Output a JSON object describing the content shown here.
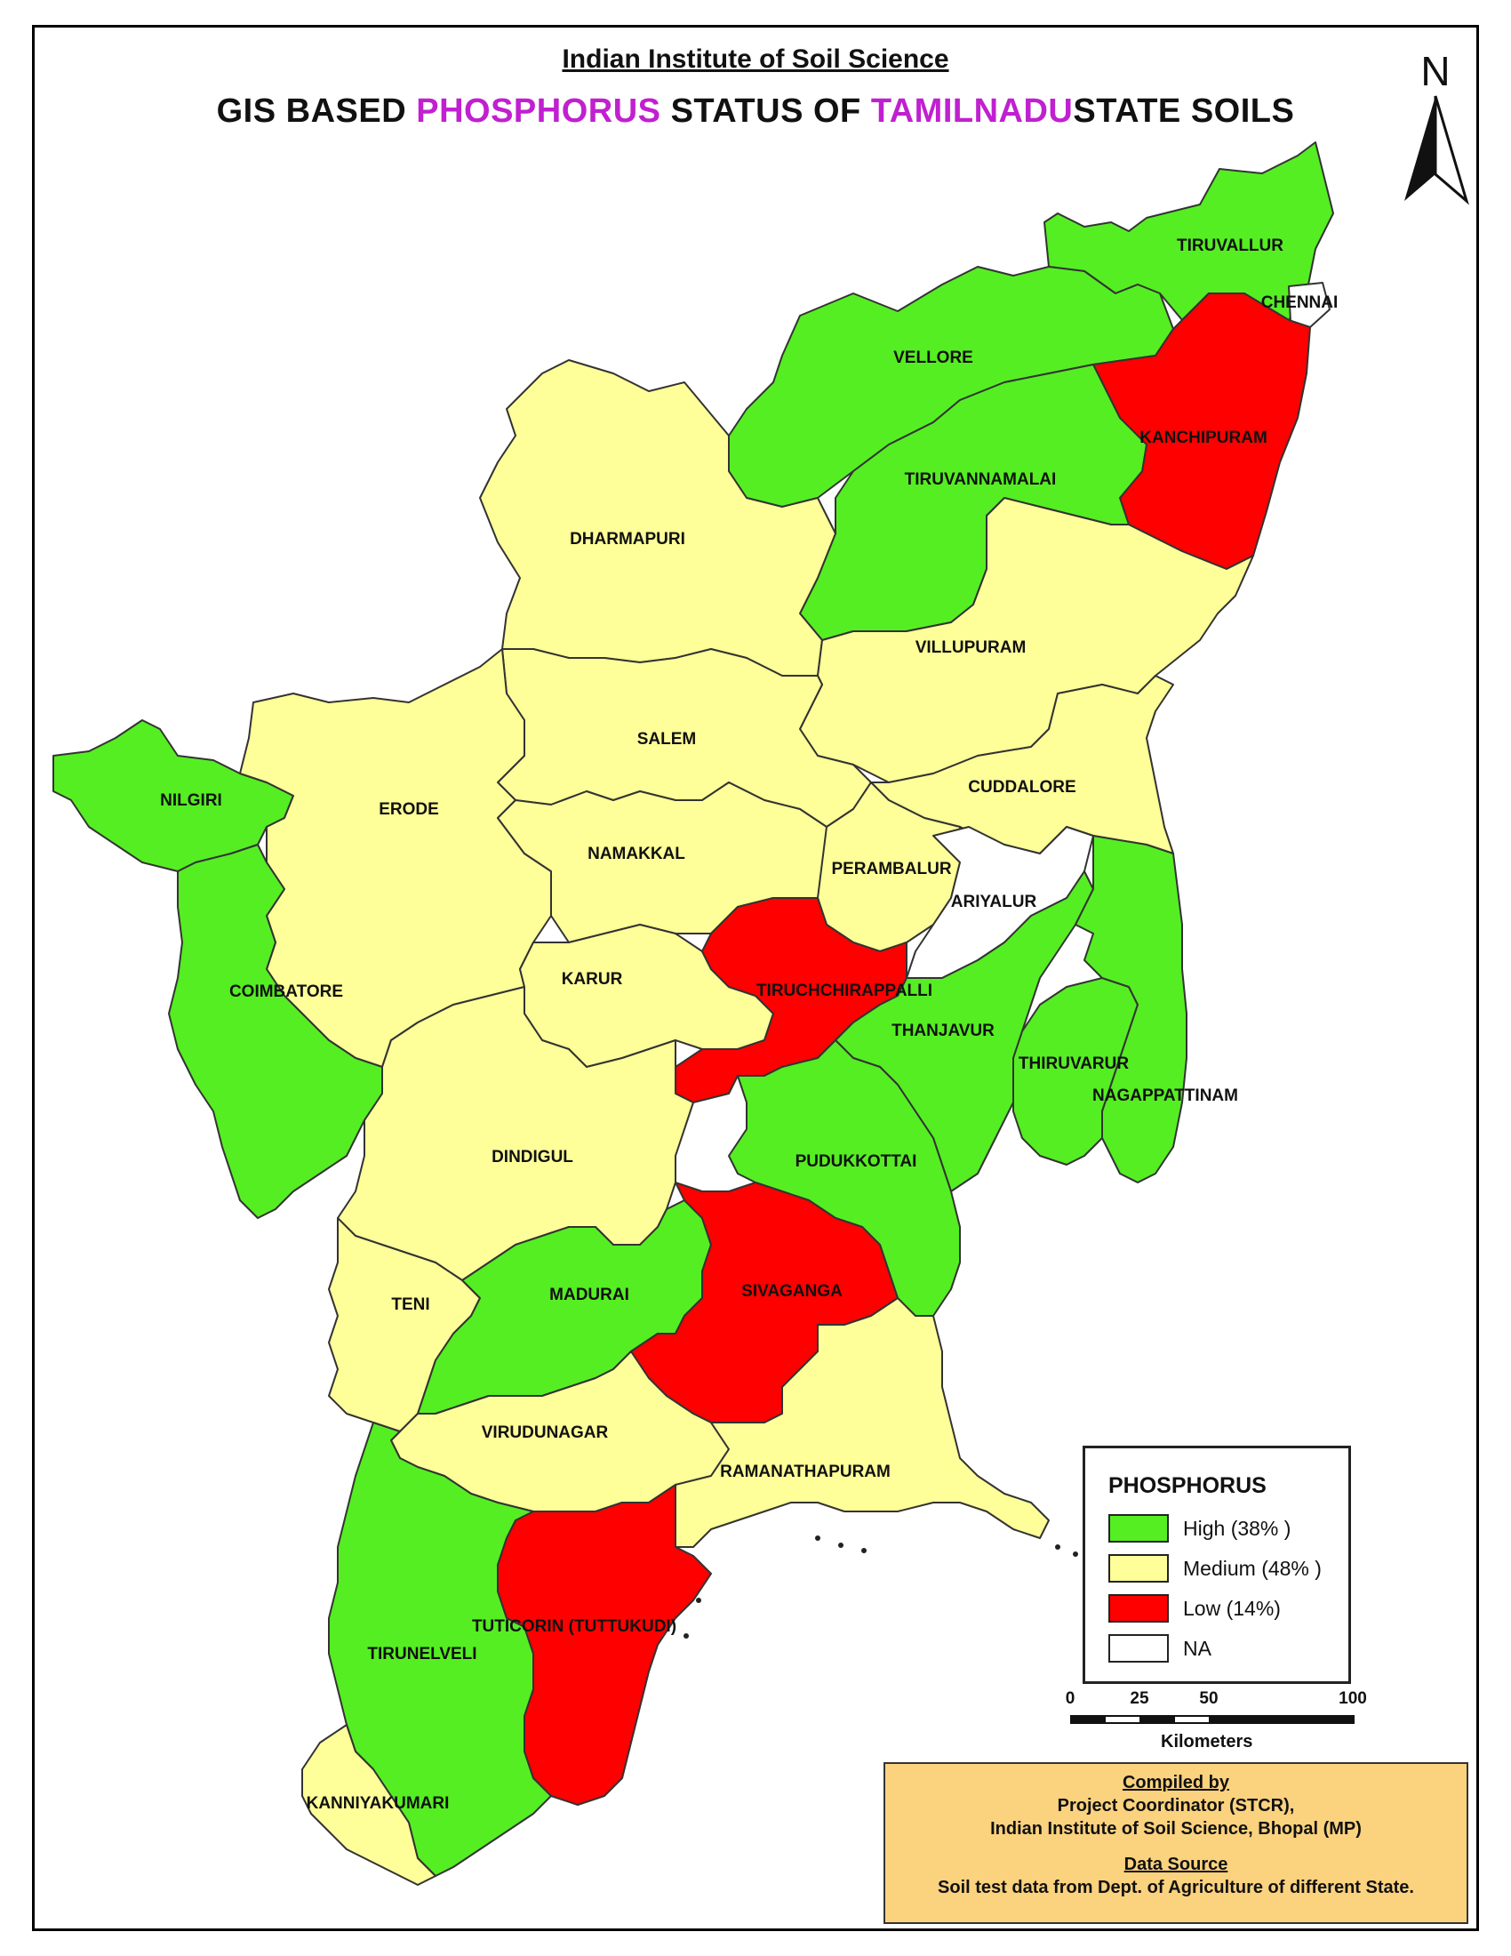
{
  "header": {
    "org": "Indian Institute of Soil Science",
    "title_parts": [
      "GIS BASED ",
      "PHOSPHORUS",
      " STATUS OF ",
      "TAMILNADU",
      "STATE SOILS"
    ]
  },
  "north_label": "N",
  "colors": {
    "high": "#55ee22",
    "medium": "#ffff99",
    "low": "#ff0000",
    "na": "#ffffff",
    "accent": "#c020d0",
    "credits_bg": "#fbd27e"
  },
  "districts": [
    {
      "id": "tiruvallur",
      "name": "TIRUVALLUR",
      "status": "high"
    },
    {
      "id": "chennai",
      "name": "CHENNAI",
      "status": "na"
    },
    {
      "id": "vellore",
      "name": "VELLORE",
      "status": "high"
    },
    {
      "id": "kanchipuram",
      "name": "KANCHIPURAM",
      "status": "low"
    },
    {
      "id": "tiruvannamalai",
      "name": "TIRUVANNAMALAI",
      "status": "high"
    },
    {
      "id": "dharmapuri",
      "name": "DHARMAPURI",
      "status": "medium"
    },
    {
      "id": "villupuram",
      "name": "VILLUPURAM",
      "status": "medium"
    },
    {
      "id": "salem",
      "name": "SALEM",
      "status": "medium"
    },
    {
      "id": "cuddalore",
      "name": "CUDDALORE",
      "status": "medium"
    },
    {
      "id": "nilgiri",
      "name": "NILGIRI",
      "status": "high"
    },
    {
      "id": "erode",
      "name": "ERODE",
      "status": "medium"
    },
    {
      "id": "namakkal",
      "name": "NAMAKKAL",
      "status": "medium"
    },
    {
      "id": "perambalur",
      "name": "PERAMBALUR",
      "status": "medium"
    },
    {
      "id": "ariyalur",
      "name": "ARIYALUR",
      "status": "na"
    },
    {
      "id": "karur",
      "name": "KARUR",
      "status": "medium"
    },
    {
      "id": "tiruchchirappalli",
      "name": "TIRUCHCHIRAPPALLI",
      "status": "low"
    },
    {
      "id": "coimbatore",
      "name": "COIMBATORE",
      "status": "high"
    },
    {
      "id": "thanjavur",
      "name": "THANJAVUR",
      "status": "high"
    },
    {
      "id": "thiruvarur",
      "name": "THIRUVARUR",
      "status": "high"
    },
    {
      "id": "nagappattinam",
      "name": "NAGAPPATTINAM",
      "status": "high"
    },
    {
      "id": "dindigul",
      "name": "DINDIGUL",
      "status": "medium"
    },
    {
      "id": "pudukkottai",
      "name": "PUDUKKOTTAI",
      "status": "high"
    },
    {
      "id": "teni",
      "name": "TENI",
      "status": "medium"
    },
    {
      "id": "madurai",
      "name": "MADURAI",
      "status": "high"
    },
    {
      "id": "sivaganga",
      "name": "SIVAGANGA",
      "status": "low"
    },
    {
      "id": "virudunagar",
      "name": "VIRUDUNAGAR",
      "status": "medium"
    },
    {
      "id": "ramanathapuram",
      "name": "RAMANATHAPURAM",
      "status": "medium"
    },
    {
      "id": "tuticorin",
      "name": "TUTICORIN (TUTTUKUDI)",
      "status": "low"
    },
    {
      "id": "tirunelveli",
      "name": "TIRUNELVELI",
      "status": "high"
    },
    {
      "id": "kanniyakumari",
      "name": "KANNIYAKUMARI",
      "status": "medium"
    }
  ],
  "legend": {
    "title": "PHOSPHORUS",
    "items": [
      {
        "key": "high",
        "label": "High (38% )"
      },
      {
        "key": "medium",
        "label": "Medium (48% )"
      },
      {
        "key": "low",
        "label": "Low (14%)"
      },
      {
        "key": "na",
        "label": "NA"
      }
    ]
  },
  "scale": {
    "ticks": [
      "0",
      "25",
      "50",
      "100"
    ],
    "unit": "Kilometers"
  },
  "credits": {
    "compiled_heading": "Compiled by",
    "line1": "Project Coordinator (STCR),",
    "line2": "Indian Institute of Soil Science, Bhopal (MP)",
    "source_heading": "Data Source",
    "source_text": "Soil test data from Dept. of Agriculture of different State."
  }
}
